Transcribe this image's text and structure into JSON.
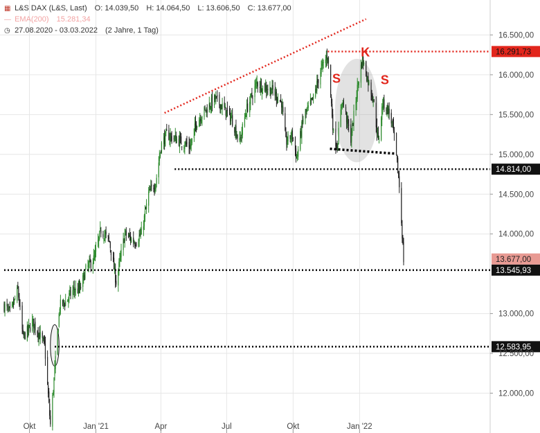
{
  "header": {
    "instrument": "L&S DAX (L&S, Last)",
    "ohlc": [
      "O: 14.039,50",
      "H: 14.064,50",
      "L: 13.606,50",
      "C: 13.677,00"
    ],
    "ema": "EMA(200)",
    "ema_value": "15.281,34",
    "period": "27.08.2020 - 03.03.2022",
    "range": "(2 Jahre, 1 Tag)"
  },
  "colors": {
    "up": "#2e8b2e",
    "down": "#222222",
    "red": "#e2261c",
    "ema": "#f2a3a3",
    "grid": "#e6e6e6"
  },
  "chart_data": {
    "type": "candlestick",
    "x_labels": [
      "Okt",
      "Jan '21",
      "Apr",
      "Jul",
      "Okt",
      "Jan '22"
    ],
    "y_ticks": [
      "16.500,00",
      "16.000,00",
      "15.500,00",
      "15.000,00",
      "14.500,00",
      "14.000,00",
      "13.000,00",
      "12.500,00",
      "12.000,00"
    ],
    "ylim": [
      11500,
      16850
    ],
    "xlim": [
      "2020-08-27",
      "2022-03-03"
    ],
    "series": [
      {
        "t": "2020-08-27",
        "c": 13100
      },
      {
        "t": "2020-09-05",
        "c": 13000
      },
      {
        "t": "2020-09-15",
        "c": 13300
      },
      {
        "t": "2020-09-22",
        "c": 12700
      },
      {
        "t": "2020-09-30",
        "c": 12800
      },
      {
        "t": "2020-10-05",
        "c": 12900
      },
      {
        "t": "2020-10-14",
        "c": 12750
      },
      {
        "t": "2020-10-22",
        "c": 12600
      },
      {
        "t": "2020-10-30",
        "c": 11600
      },
      {
        "t": "2020-11-06",
        "c": 12400
      },
      {
        "t": "2020-11-12",
        "c": 13100
      },
      {
        "t": "2020-11-20",
        "c": 13150
      },
      {
        "t": "2020-12-01",
        "c": 13300
      },
      {
        "t": "2020-12-10",
        "c": 13300
      },
      {
        "t": "2020-12-18",
        "c": 13550
      },
      {
        "t": "2020-12-30",
        "c": 13700
      },
      {
        "t": "2021-01-08",
        "c": 14050
      },
      {
        "t": "2021-01-20",
        "c": 13900
      },
      {
        "t": "2021-01-29",
        "c": 13400
      },
      {
        "t": "2021-02-10",
        "c": 14000
      },
      {
        "t": "2021-02-24",
        "c": 13900
      },
      {
        "t": "2021-03-05",
        "c": 14000
      },
      {
        "t": "2021-03-15",
        "c": 14500
      },
      {
        "t": "2021-03-25",
        "c": 14650
      },
      {
        "t": "2021-04-01",
        "c": 15100
      },
      {
        "t": "2021-04-09",
        "c": 15250
      },
      {
        "t": "2021-04-20",
        "c": 15200
      },
      {
        "t": "2021-04-30",
        "c": 15150
      },
      {
        "t": "2021-05-12",
        "c": 15100
      },
      {
        "t": "2021-05-20",
        "c": 15400
      },
      {
        "t": "2021-06-01",
        "c": 15550
      },
      {
        "t": "2021-06-15",
        "c": 15700
      },
      {
        "t": "2021-06-25",
        "c": 15600
      },
      {
        "t": "2021-07-08",
        "c": 15450
      },
      {
        "t": "2021-07-19",
        "c": 15150
      },
      {
        "t": "2021-07-28",
        "c": 15550
      },
      {
        "t": "2021-08-12",
        "c": 15900
      },
      {
        "t": "2021-08-20",
        "c": 15850
      },
      {
        "t": "2021-09-03",
        "c": 15800
      },
      {
        "t": "2021-09-15",
        "c": 15650
      },
      {
        "t": "2021-09-21",
        "c": 15150
      },
      {
        "t": "2021-09-30",
        "c": 15250
      },
      {
        "t": "2021-10-06",
        "c": 14950
      },
      {
        "t": "2021-10-15",
        "c": 15450
      },
      {
        "t": "2021-10-29",
        "c": 15700
      },
      {
        "t": "2021-11-08",
        "c": 16050
      },
      {
        "t": "2021-11-18",
        "c": 16250
      },
      {
        "t": "2021-11-26",
        "c": 15250
      },
      {
        "t": "2021-12-01",
        "c": 15100
      },
      {
        "t": "2021-12-08",
        "c": 15700
      },
      {
        "t": "2021-12-20",
        "c": 15200
      },
      {
        "t": "2021-12-30",
        "c": 15900
      },
      {
        "t": "2022-01-05",
        "c": 16200
      },
      {
        "t": "2022-01-12",
        "c": 15950
      },
      {
        "t": "2022-01-20",
        "c": 15700
      },
      {
        "t": "2022-01-27",
        "c": 15150
      },
      {
        "t": "2022-02-02",
        "c": 15650
      },
      {
        "t": "2022-02-10",
        "c": 15550
      },
      {
        "t": "2022-02-16",
        "c": 15350
      },
      {
        "t": "2022-02-23",
        "c": 14800
      },
      {
        "t": "2022-02-25",
        "c": 14600
      },
      {
        "t": "2022-03-01",
        "c": 14000
      },
      {
        "t": "2022-03-03",
        "c": 13677
      }
    ],
    "horizontal_levels": [
      {
        "value": 16291.73,
        "label": "16.291,73",
        "style": "red-dotted",
        "from": "2021-11-18",
        "box": "red"
      },
      {
        "value": 14814.0,
        "label": "14.814,00",
        "style": "black-dotted",
        "from": "2021-04-20",
        "box": "black"
      },
      {
        "value": 13545.93,
        "label": "13.545,93",
        "style": "black-dotted",
        "from": "2020-08-27",
        "box": "black"
      },
      {
        "value": 12583.95,
        "label": "12.583,95",
        "style": "black-dotted",
        "from": "2020-11-05",
        "box": "black"
      }
    ],
    "last_price": {
      "value": 13677.0,
      "label": "13.677,00"
    },
    "trendlines": [
      {
        "color": "red",
        "from": {
          "t": "2021-04-06",
          "v": 15520
        },
        "to": {
          "t": "2022-01-10",
          "v": 16700
        }
      },
      {
        "color": "black",
        "from": {
          "t": "2021-11-21",
          "v": 15070
        },
        "to": {
          "t": "2022-02-18",
          "v": 15010
        }
      }
    ],
    "annotations": [
      {
        "text": "S",
        "t": "2021-11-30",
        "v": 15900
      },
      {
        "text": "K",
        "t": "2022-01-09",
        "v": 16230
      },
      {
        "text": "S",
        "t": "2022-02-05",
        "v": 15880
      }
    ],
    "highlight_ellipses": [
      {
        "center": {
          "t": "2021-12-28",
          "v": 15550
        },
        "rx_days": 30,
        "ry_value": 650,
        "fill": "gray"
      },
      {
        "center": {
          "t": "2020-11-05",
          "v": 12600
        },
        "rx_days": 6,
        "ry_value": 260,
        "fill": "light-gray"
      }
    ]
  }
}
